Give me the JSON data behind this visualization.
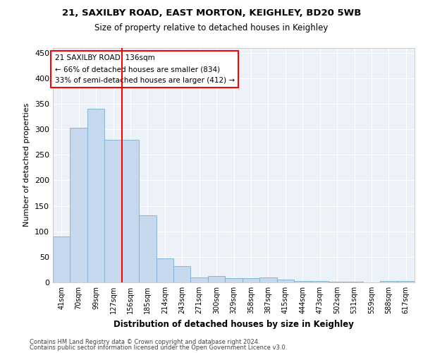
{
  "title_line1": "21, SAXILBY ROAD, EAST MORTON, KEIGHLEY, BD20 5WB",
  "title_line2": "Size of property relative to detached houses in Keighley",
  "xlabel": "Distribution of detached houses by size in Keighley",
  "ylabel": "Number of detached properties",
  "categories": [
    "41sqm",
    "70sqm",
    "99sqm",
    "127sqm",
    "156sqm",
    "185sqm",
    "214sqm",
    "243sqm",
    "271sqm",
    "300sqm",
    "329sqm",
    "358sqm",
    "387sqm",
    "415sqm",
    "444sqm",
    "473sqm",
    "502sqm",
    "531sqm",
    "559sqm",
    "588sqm",
    "617sqm"
  ],
  "values": [
    90,
    303,
    341,
    279,
    279,
    131,
    47,
    32,
    9,
    12,
    8,
    8,
    9,
    5,
    3,
    3,
    2,
    1,
    0,
    3,
    3
  ],
  "bar_color": "#c5d8ee",
  "bar_edge_color": "#7aaed0",
  "vline_color": "red",
  "vline_index": 4,
  "annotation_text": "21 SAXILBY ROAD: 136sqm\n← 66% of detached houses are smaller (834)\n33% of semi-detached houses are larger (412) →",
  "annotation_box_edgecolor": "red",
  "annotation_fill_color": "white",
  "annotation_text_color": "black",
  "ylim": [
    0,
    460
  ],
  "yticks": [
    0,
    50,
    100,
    150,
    200,
    250,
    300,
    350,
    400,
    450
  ],
  "background_color": "#edf2f9",
  "grid_color": "white",
  "footer_line1": "Contains HM Land Registry data © Crown copyright and database right 2024.",
  "footer_line2": "Contains public sector information licensed under the Open Government Licence v3.0."
}
